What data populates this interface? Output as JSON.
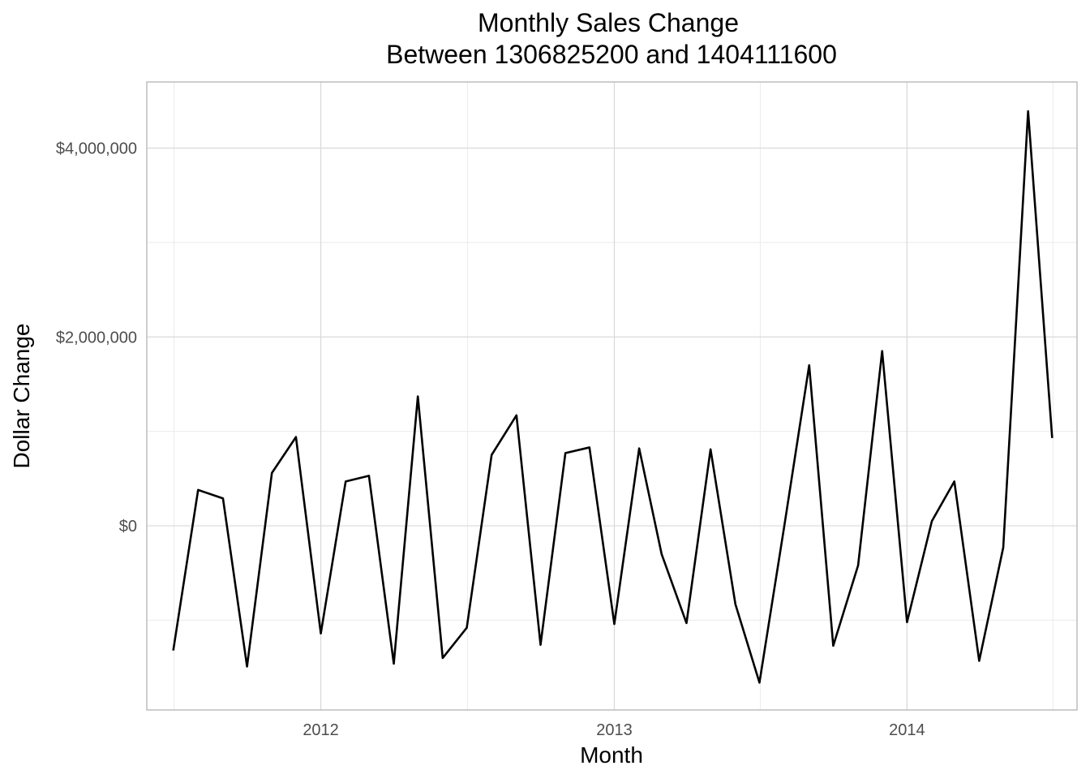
{
  "chart_data": {
    "type": "line",
    "title": "Monthly Sales Change",
    "subtitle": "Between 1306825200 and 1404111600",
    "xlabel": "Month",
    "ylabel": "Dollar Change",
    "x_ticks": [
      "2012",
      "2013",
      "2014"
    ],
    "y_ticks": [
      "$0",
      "$2,000,000",
      "$4,000,000"
    ],
    "xlim": [
      "2011-05-29",
      "2014-08-01"
    ],
    "ylim": [
      -1950000,
      4700000
    ],
    "grid": true,
    "legend": "none",
    "line_color": "#000000",
    "series": [
      {
        "x": [
          "2011-07-01",
          "2011-08-01",
          "2011-09-01",
          "2011-10-01",
          "2011-11-01",
          "2011-12-01",
          "2012-01-01",
          "2012-02-01",
          "2012-03-01",
          "2012-04-01",
          "2012-05-01",
          "2012-06-01",
          "2012-07-01",
          "2012-08-01",
          "2012-09-01",
          "2012-10-01",
          "2012-11-01",
          "2012-12-01",
          "2013-01-01",
          "2013-02-01",
          "2013-03-01",
          "2013-04-01",
          "2013-05-01",
          "2013-06-01",
          "2013-07-01",
          "2013-08-01",
          "2013-09-01",
          "2013-10-01",
          "2013-11-01",
          "2013-12-01",
          "2014-01-01",
          "2014-02-01",
          "2014-03-01",
          "2014-04-01",
          "2014-05-01",
          "2014-06-01",
          "2014-07-01"
        ],
        "values": [
          -1320000,
          380000,
          290000,
          -1490000,
          560000,
          940000,
          -1140000,
          470000,
          530000,
          -1460000,
          1370000,
          -1400000,
          -1080000,
          750000,
          1170000,
          -1260000,
          770000,
          830000,
          -1040000,
          820000,
          -300000,
          -1030000,
          810000,
          -830000,
          -1660000,
          0,
          1700000,
          -1270000,
          -420000,
          1850000,
          -1020000,
          50000,
          470000,
          -1430000,
          -230000,
          4390000,
          930000
        ]
      }
    ]
  }
}
